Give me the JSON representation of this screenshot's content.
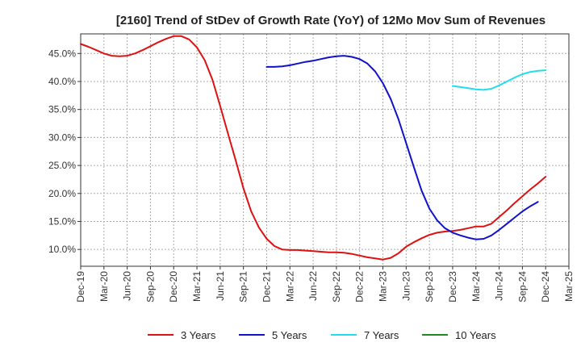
{
  "chart_data": {
    "type": "line",
    "title": "[2160]  Trend of StDev of Growth Rate (YoY) of 12Mo Mov Sum of Revenues",
    "xlabel": "",
    "ylabel": "",
    "ylim": [
      7.0,
      48.5
    ],
    "y_ticks": [
      10.0,
      15.0,
      20.0,
      25.0,
      30.0,
      35.0,
      40.0,
      45.0
    ],
    "y_tick_labels": [
      "10.0%",
      "15.0%",
      "20.0%",
      "25.0%",
      "30.0%",
      "35.0%",
      "40.0%",
      "45.0%"
    ],
    "x_ticks": [
      "2019-12",
      "2020-03",
      "2020-06",
      "2020-09",
      "2020-12",
      "2021-03",
      "2021-06",
      "2021-09",
      "2021-12",
      "2022-03",
      "2022-06",
      "2022-09",
      "2022-12",
      "2023-03",
      "2023-06",
      "2023-09",
      "2023-12",
      "2024-03",
      "2024-06",
      "2024-09",
      "2024-12",
      "2025-03"
    ],
    "x_tick_labels": [
      "Dec-19",
      "Mar-20",
      "Jun-20",
      "Sep-20",
      "Dec-20",
      "Mar-21",
      "Jun-21",
      "Sep-21",
      "Dec-21",
      "Mar-22",
      "Jun-22",
      "Sep-22",
      "Dec-22",
      "Mar-23",
      "Jun-23",
      "Sep-23",
      "Dec-23",
      "Mar-24",
      "Jun-24",
      "Sep-24",
      "Dec-24",
      "Mar-25"
    ],
    "grid": true,
    "legend_position": "bottom",
    "series": [
      {
        "name": "3 Years",
        "color": "#dd1111",
        "points": [
          [
            "2019-12",
            46.7
          ],
          [
            "2020-01",
            46.2
          ],
          [
            "2020-02",
            45.6
          ],
          [
            "2020-03",
            45.0
          ],
          [
            "2020-04",
            44.6
          ],
          [
            "2020-05",
            44.5
          ],
          [
            "2020-06",
            44.6
          ],
          [
            "2020-07",
            45.0
          ],
          [
            "2020-08",
            45.6
          ],
          [
            "2020-09",
            46.3
          ],
          [
            "2020-10",
            47.0
          ],
          [
            "2020-11",
            47.6
          ],
          [
            "2020-12",
            48.1
          ],
          [
            "2021-01",
            48.1
          ],
          [
            "2021-02",
            47.5
          ],
          [
            "2021-03",
            46.1
          ],
          [
            "2021-04",
            43.8
          ],
          [
            "2021-05",
            40.3
          ],
          [
            "2021-06",
            35.6
          ],
          [
            "2021-07",
            30.7
          ],
          [
            "2021-08",
            25.9
          ],
          [
            "2021-09",
            20.9
          ],
          [
            "2021-10",
            16.8
          ],
          [
            "2021-11",
            13.9
          ],
          [
            "2021-12",
            11.9
          ],
          [
            "2022-01",
            10.6
          ],
          [
            "2022-02",
            10.0
          ],
          [
            "2022-03",
            9.9
          ],
          [
            "2022-04",
            9.9
          ],
          [
            "2022-05",
            9.8
          ],
          [
            "2022-06",
            9.7
          ],
          [
            "2022-07",
            9.6
          ],
          [
            "2022-08",
            9.5
          ],
          [
            "2022-09",
            9.5
          ],
          [
            "2022-10",
            9.4
          ],
          [
            "2022-11",
            9.2
          ],
          [
            "2022-12",
            8.9
          ],
          [
            "2023-01",
            8.6
          ],
          [
            "2023-02",
            8.4
          ],
          [
            "2023-03",
            8.2
          ],
          [
            "2023-04",
            8.5
          ],
          [
            "2023-05",
            9.3
          ],
          [
            "2023-06",
            10.5
          ],
          [
            "2023-07",
            11.3
          ],
          [
            "2023-08",
            12.0
          ],
          [
            "2023-09",
            12.6
          ],
          [
            "2023-10",
            13.0
          ],
          [
            "2023-11",
            13.2
          ],
          [
            "2023-12",
            13.3
          ],
          [
            "2024-01",
            13.5
          ],
          [
            "2024-02",
            13.8
          ],
          [
            "2024-03",
            14.1
          ],
          [
            "2024-04",
            14.1
          ],
          [
            "2024-05",
            14.6
          ],
          [
            "2024-06",
            15.8
          ],
          [
            "2024-07",
            17.0
          ],
          [
            "2024-08",
            18.3
          ],
          [
            "2024-09",
            19.5
          ],
          [
            "2024-10",
            20.7
          ],
          [
            "2024-11",
            21.8
          ],
          [
            "2024-12",
            23.0
          ]
        ]
      },
      {
        "name": "5 Years",
        "color": "#1111cc",
        "points": [
          [
            "2021-12",
            42.6
          ],
          [
            "2022-01",
            42.6
          ],
          [
            "2022-02",
            42.7
          ],
          [
            "2022-03",
            42.9
          ],
          [
            "2022-04",
            43.2
          ],
          [
            "2022-05",
            43.5
          ],
          [
            "2022-06",
            43.7
          ],
          [
            "2022-07",
            44.0
          ],
          [
            "2022-08",
            44.3
          ],
          [
            "2022-09",
            44.5
          ],
          [
            "2022-10",
            44.6
          ],
          [
            "2022-11",
            44.4
          ],
          [
            "2022-12",
            44.0
          ],
          [
            "2023-01",
            43.2
          ],
          [
            "2023-02",
            41.8
          ],
          [
            "2023-03",
            39.7
          ],
          [
            "2023-04",
            36.9
          ],
          [
            "2023-05",
            33.3
          ],
          [
            "2023-06",
            29.0
          ],
          [
            "2023-07",
            24.7
          ],
          [
            "2023-08",
            20.5
          ],
          [
            "2023-09",
            17.3
          ],
          [
            "2023-10",
            15.2
          ],
          [
            "2023-11",
            13.8
          ],
          [
            "2023-12",
            13.0
          ],
          [
            "2024-01",
            12.5
          ],
          [
            "2024-02",
            12.1
          ],
          [
            "2024-03",
            11.8
          ],
          [
            "2024-04",
            11.9
          ],
          [
            "2024-05",
            12.5
          ],
          [
            "2024-06",
            13.5
          ],
          [
            "2024-07",
            14.6
          ],
          [
            "2024-08",
            15.7
          ],
          [
            "2024-09",
            16.8
          ],
          [
            "2024-10",
            17.7
          ],
          [
            "2024-11",
            18.5
          ]
        ]
      },
      {
        "name": "7 Years",
        "color": "#22ddee",
        "points": [
          [
            "2023-12",
            39.2
          ],
          [
            "2024-01",
            39.0
          ],
          [
            "2024-02",
            38.8
          ],
          [
            "2024-03",
            38.6
          ],
          [
            "2024-04",
            38.5
          ],
          [
            "2024-05",
            38.7
          ],
          [
            "2024-06",
            39.3
          ],
          [
            "2024-07",
            40.0
          ],
          [
            "2024-08",
            40.7
          ],
          [
            "2024-09",
            41.3
          ],
          [
            "2024-10",
            41.7
          ],
          [
            "2024-11",
            41.9
          ],
          [
            "2024-12",
            42.0
          ]
        ]
      },
      {
        "name": "10 Years",
        "color": "#228822",
        "points": []
      }
    ]
  }
}
